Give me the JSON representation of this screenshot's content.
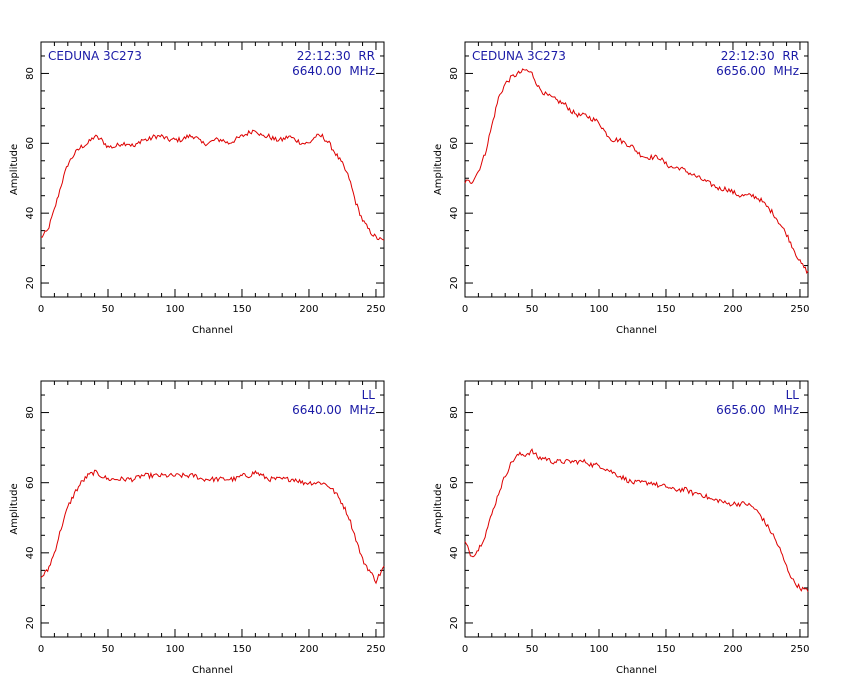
{
  "colors": {
    "trace": "#dd0000",
    "annotation": "#1a1aa6",
    "axes": "#000000"
  },
  "chart_data": [
    {
      "type": "line",
      "panel": "top-left",
      "annotation_left": "CEDUNA 3C273",
      "annotation_right": [
        "22:12:30  RR",
        "6640.00  MHz"
      ],
      "xlabel": "Channel",
      "ylabel": "Amplitude",
      "xlim": [
        0,
        256
      ],
      "ylim": [
        16,
        89
      ],
      "xticks": [
        0,
        50,
        100,
        150,
        200,
        250
      ],
      "yticks": [
        20,
        40,
        60,
        80
      ],
      "grid": false,
      "series": [
        {
          "x": [
            0,
            5,
            10,
            15,
            20,
            25,
            30,
            35,
            40,
            45,
            50,
            55,
            60,
            65,
            70,
            75,
            80,
            85,
            90,
            95,
            100,
            105,
            110,
            115,
            120,
            125,
            130,
            135,
            140,
            145,
            150,
            155,
            160,
            165,
            170,
            175,
            180,
            185,
            190,
            195,
            200,
            205,
            210,
            215,
            220,
            225,
            230,
            235,
            240,
            245,
            250,
            256
          ],
          "values": [
            33,
            35,
            41,
            48,
            54,
            57,
            59,
            60,
            62,
            61,
            59,
            59,
            60,
            60,
            59,
            61,
            61,
            62,
            62,
            61,
            61,
            61,
            62,
            62,
            60,
            60,
            61,
            61,
            60,
            61,
            62,
            63,
            64,
            62,
            62,
            61,
            61,
            62,
            61,
            60,
            60,
            62,
            62,
            60,
            57,
            54,
            50,
            43,
            38,
            35,
            33,
            32
          ]
        }
      ]
    },
    {
      "type": "line",
      "panel": "top-right",
      "annotation_left": "CEDUNA 3C273",
      "annotation_right": [
        "22:12:30  RR",
        "6656.00  MHz"
      ],
      "xlabel": "Channel",
      "ylabel": "Amplitude",
      "xlim": [
        0,
        256
      ],
      "ylim": [
        16,
        89
      ],
      "xticks": [
        0,
        50,
        100,
        150,
        200,
        250
      ],
      "yticks": [
        20,
        40,
        60,
        80
      ],
      "grid": false,
      "series": [
        {
          "x": [
            0,
            5,
            10,
            15,
            20,
            25,
            30,
            35,
            40,
            45,
            50,
            55,
            60,
            65,
            70,
            75,
            80,
            85,
            90,
            95,
            100,
            105,
            110,
            115,
            120,
            125,
            130,
            135,
            140,
            145,
            150,
            155,
            160,
            165,
            170,
            175,
            180,
            185,
            190,
            195,
            200,
            205,
            210,
            215,
            220,
            225,
            230,
            235,
            240,
            245,
            250,
            256
          ],
          "values": [
            49,
            49,
            52,
            57,
            65,
            73,
            77,
            79,
            80,
            81,
            80,
            76,
            74,
            73,
            72,
            71,
            69,
            68,
            68,
            67,
            66,
            63,
            61,
            61,
            60,
            59,
            57,
            56,
            56,
            56,
            54,
            53,
            53,
            52,
            51,
            50,
            49,
            48,
            47,
            47,
            46,
            45,
            45,
            45,
            44,
            42,
            40,
            37,
            34,
            30,
            26,
            23
          ]
        }
      ]
    },
    {
      "type": "line",
      "panel": "bottom-left",
      "annotation_left": "",
      "annotation_right": [
        "LL",
        "6640.00  MHz"
      ],
      "xlabel": "Channel",
      "ylabel": "Amplitude",
      "xlim": [
        0,
        256
      ],
      "ylim": [
        16,
        89
      ],
      "xticks": [
        0,
        50,
        100,
        150,
        200,
        250
      ],
      "yticks": [
        20,
        40,
        60,
        80
      ],
      "grid": false,
      "series": [
        {
          "x": [
            0,
            5,
            10,
            15,
            20,
            25,
            30,
            35,
            40,
            45,
            50,
            55,
            60,
            65,
            70,
            75,
            80,
            85,
            90,
            95,
            100,
            105,
            110,
            115,
            120,
            125,
            130,
            135,
            140,
            145,
            150,
            155,
            160,
            165,
            170,
            175,
            180,
            185,
            190,
            195,
            200,
            205,
            210,
            215,
            220,
            225,
            230,
            235,
            240,
            245,
            250,
            256
          ],
          "values": [
            33,
            35,
            40,
            47,
            53,
            57,
            60,
            62,
            63,
            62,
            61,
            61,
            61,
            61,
            61,
            62,
            62,
            62,
            62,
            62,
            62,
            62,
            62,
            62,
            61,
            61,
            61,
            61,
            61,
            61,
            62,
            62,
            63,
            62,
            61,
            61,
            61,
            61,
            61,
            60,
            60,
            60,
            60,
            59,
            57,
            54,
            50,
            44,
            38,
            35,
            32,
            36
          ]
        }
      ]
    },
    {
      "type": "line",
      "panel": "bottom-right",
      "annotation_left": "",
      "annotation_right": [
        "LL",
        "6656.00  MHz"
      ],
      "xlabel": "Channel",
      "ylabel": "Amplitude",
      "xlim": [
        0,
        256
      ],
      "ylim": [
        16,
        89
      ],
      "xticks": [
        0,
        50,
        100,
        150,
        200,
        250
      ],
      "yticks": [
        20,
        40,
        60,
        80
      ],
      "grid": false,
      "series": [
        {
          "x": [
            0,
            5,
            10,
            15,
            20,
            25,
            30,
            35,
            40,
            45,
            50,
            55,
            60,
            65,
            70,
            75,
            80,
            85,
            90,
            95,
            100,
            105,
            110,
            115,
            120,
            125,
            130,
            135,
            140,
            145,
            150,
            155,
            160,
            165,
            170,
            175,
            180,
            185,
            190,
            195,
            200,
            205,
            210,
            215,
            220,
            225,
            230,
            235,
            240,
            245,
            250,
            256
          ],
          "values": [
            43,
            39,
            41,
            45,
            51,
            57,
            62,
            66,
            68,
            68,
            69,
            67,
            67,
            66,
            66,
            66,
            66,
            66,
            66,
            65,
            65,
            64,
            63,
            62,
            61,
            60,
            60,
            60,
            60,
            59,
            59,
            58,
            58,
            58,
            57,
            57,
            56,
            55,
            55,
            54,
            54,
            54,
            54,
            53,
            51,
            48,
            45,
            41,
            36,
            32,
            30,
            29
          ]
        }
      ]
    }
  ]
}
